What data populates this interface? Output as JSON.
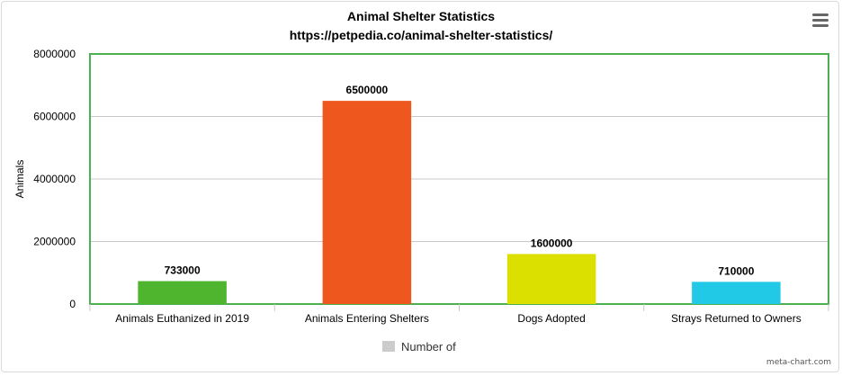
{
  "chart_data": {
    "type": "bar",
    "title": "Animal Shelter Statistics",
    "subtitle": "https://petpedia.co/animal-shelter-statistics/",
    "ylabel": "Animals",
    "xlabel": "",
    "categories": [
      "Animals Euthanized in 2019",
      "Animals Entering Shelters",
      "Dogs Adopted",
      "Strays Returned to Owners"
    ],
    "series": [
      {
        "name": "Number of",
        "values": [
          733000,
          6500000,
          1600000,
          710000
        ]
      }
    ],
    "data_labels": [
      "733000",
      "6500000",
      "1600000",
      "710000"
    ],
    "ylim": [
      0,
      8000000
    ],
    "yticks": [
      0,
      2000000,
      4000000,
      6000000,
      8000000
    ],
    "ytick_labels": [
      "0",
      "2000000",
      "4000000",
      "6000000",
      "8000000"
    ],
    "bar_colors": [
      "#4fb52f",
      "#ee571e",
      "#dbe000",
      "#22c9e6"
    ],
    "legend_color": "#cccccc",
    "plot_border_color": "#4caf50",
    "grid": true,
    "legend_position": "bottom-center"
  },
  "ui": {
    "menu_icon": "hamburger-menu-icon",
    "credit": "meta-chart.com"
  }
}
